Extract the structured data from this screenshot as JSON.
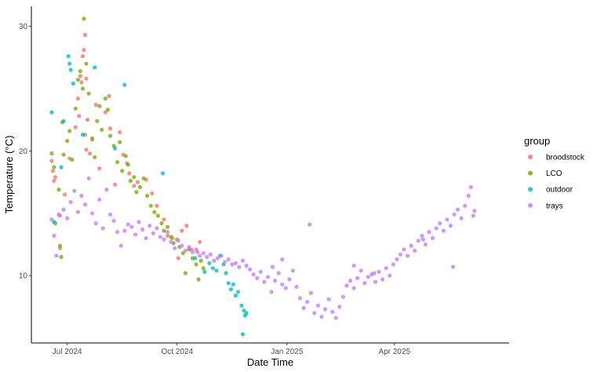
{
  "chart_data": {
    "type": "scatter",
    "xlabel": "Date Time",
    "ylabel": "Temperature (°C)",
    "legend_title": "group",
    "legend_position": "right",
    "grid": false,
    "xlim": [
      "2024-06-01",
      "2025-07-06"
    ],
    "ylim": [
      4.6,
      31.6
    ],
    "x_ticks": [
      {
        "date": "2024-07-01",
        "label": "Jul 2024"
      },
      {
        "date": "2024-10-01",
        "label": "Oct 2024"
      },
      {
        "date": "2025-01-01",
        "label": "Jan 2025"
      },
      {
        "date": "2025-04-01",
        "label": "Apr 2025"
      }
    ],
    "y_ticks": [
      10,
      20,
      30
    ],
    "series": [
      {
        "name": "broodstock",
        "color": "#F8766D",
        "points": [
          [
            "2024-06-18",
            19.2
          ],
          [
            "2024-06-19",
            18.4
          ],
          [
            "2024-06-20",
            17.6
          ],
          [
            "2024-06-21",
            17.9
          ],
          [
            "2024-06-24",
            14.9
          ],
          [
            "2024-06-25",
            12.2
          ],
          [
            "2024-06-29",
            16.5
          ],
          [
            "2024-07-03",
            19.4
          ],
          [
            "2024-07-08",
            21.9
          ],
          [
            "2024-07-10",
            24.2
          ],
          [
            "2024-07-11",
            22.8
          ],
          [
            "2024-07-12",
            26.0
          ],
          [
            "2024-07-13",
            25.5
          ],
          [
            "2024-07-14",
            27.6
          ],
          [
            "2024-07-15",
            28.1
          ],
          [
            "2024-07-16",
            29.3
          ],
          [
            "2024-07-16",
            21.3
          ],
          [
            "2024-07-17",
            20.1
          ],
          [
            "2024-07-17",
            25.8
          ],
          [
            "2024-07-18",
            22.5
          ],
          [
            "2024-07-20",
            19.8
          ],
          [
            "2024-07-22",
            20.9
          ],
          [
            "2024-07-25",
            23.7
          ],
          [
            "2024-07-28",
            18.6
          ],
          [
            "2024-08-02",
            23.1
          ],
          [
            "2024-08-05",
            24.4
          ],
          [
            "2024-08-06",
            21.8
          ],
          [
            "2024-08-10",
            17.3
          ],
          [
            "2024-08-14",
            21.5
          ],
          [
            "2024-08-17",
            19.7
          ],
          [
            "2024-08-20",
            19.0
          ],
          [
            "2024-08-22",
            18.2
          ],
          [
            "2024-08-26",
            17.2
          ],
          [
            "2024-08-29",
            17.5
          ],
          [
            "2024-09-05",
            17.7
          ],
          [
            "2024-09-10",
            16.6
          ],
          [
            "2024-09-14",
            15.6
          ],
          [
            "2024-09-20",
            14.5
          ],
          [
            "2024-09-23",
            13.2
          ],
          [
            "2024-09-27",
            13.0
          ],
          [
            "2024-10-02",
            11.4
          ],
          [
            "2024-10-05",
            13.6
          ],
          [
            "2024-10-09",
            14.0
          ],
          [
            "2024-10-13",
            12.1
          ],
          [
            "2024-10-18",
            11.9
          ],
          [
            "2024-10-20",
            12.7
          ]
        ]
      },
      {
        "name": "LCO",
        "color": "#7CAE00",
        "points": [
          [
            "2024-06-18",
            19.8
          ],
          [
            "2024-06-20",
            18.7
          ],
          [
            "2024-06-21",
            14.2
          ],
          [
            "2024-06-24",
            16.9
          ],
          [
            "2024-06-25",
            12.4
          ],
          [
            "2024-06-26",
            11.5
          ],
          [
            "2024-06-27",
            22.3
          ],
          [
            "2024-06-28",
            19.7
          ],
          [
            "2024-07-01",
            20.8
          ],
          [
            "2024-07-03",
            21.6
          ],
          [
            "2024-07-05",
            19.3
          ],
          [
            "2024-07-08",
            23.4
          ],
          [
            "2024-07-10",
            25.7
          ],
          [
            "2024-07-12",
            26.4
          ],
          [
            "2024-07-14",
            25.0
          ],
          [
            "2024-07-15",
            30.6
          ],
          [
            "2024-07-17",
            27.0
          ],
          [
            "2024-07-19",
            24.6
          ],
          [
            "2024-07-22",
            21.0
          ],
          [
            "2024-07-24",
            19.5
          ],
          [
            "2024-07-26",
            22.4
          ],
          [
            "2024-07-28",
            23.6
          ],
          [
            "2024-07-30",
            21.7
          ],
          [
            "2024-08-02",
            24.2
          ],
          [
            "2024-08-04",
            23.3
          ],
          [
            "2024-08-06",
            21.2
          ],
          [
            "2024-08-09",
            20.4
          ],
          [
            "2024-08-12",
            19.1
          ],
          [
            "2024-08-14",
            20.7
          ],
          [
            "2024-08-16",
            18.4
          ],
          [
            "2024-08-19",
            19.6
          ],
          [
            "2024-08-21",
            18.9
          ],
          [
            "2024-08-23",
            17.6
          ],
          [
            "2024-08-26",
            17.9
          ],
          [
            "2024-08-28",
            16.7
          ],
          [
            "2024-08-31",
            17.1
          ],
          [
            "2024-09-03",
            17.8
          ],
          [
            "2024-09-06",
            16.4
          ],
          [
            "2024-09-09",
            15.6
          ],
          [
            "2024-09-12",
            15.1
          ],
          [
            "2024-09-15",
            14.8
          ],
          [
            "2024-09-18",
            14.2
          ],
          [
            "2024-09-20",
            13.6
          ],
          [
            "2024-09-23",
            13.9
          ],
          [
            "2024-09-26",
            13.1
          ],
          [
            "2024-09-28",
            12.6
          ],
          [
            "2024-10-01",
            12.9
          ],
          [
            "2024-10-03",
            12.3
          ],
          [
            "2024-10-06",
            11.8
          ],
          [
            "2024-10-08",
            10.2
          ],
          [
            "2024-10-11",
            12.1
          ],
          [
            "2024-10-14",
            11.4
          ],
          [
            "2024-10-17",
            10.9
          ],
          [
            "2024-10-19",
            9.7
          ],
          [
            "2024-10-21",
            11.2
          ],
          [
            "2024-10-23",
            10.6
          ]
        ]
      },
      {
        "name": "outdoor",
        "color": "#00BFC4",
        "points": [
          [
            "2024-06-18",
            23.1
          ],
          [
            "2024-06-20",
            14.3
          ],
          [
            "2024-06-26",
            18.7
          ],
          [
            "2024-06-28",
            22.4
          ],
          [
            "2024-07-02",
            27.6
          ],
          [
            "2024-07-03",
            27.0
          ],
          [
            "2024-07-04",
            26.5
          ],
          [
            "2024-07-06",
            25.4
          ],
          [
            "2024-07-14",
            21.3
          ],
          [
            "2024-07-24",
            26.7
          ],
          [
            "2024-08-18",
            25.3
          ],
          [
            "2024-08-10",
            20.2
          ],
          [
            "2024-09-19",
            18.2
          ],
          [
            "2024-10-16",
            11.4
          ],
          [
            "2024-10-24",
            10.3
          ],
          [
            "2024-10-28",
            11.0
          ],
          [
            "2024-10-31",
            10.6
          ],
          [
            "2024-11-03",
            10.4
          ],
          [
            "2024-11-06",
            11.6
          ],
          [
            "2024-11-09",
            10.9
          ],
          [
            "2024-11-11",
            10.2
          ],
          [
            "2024-11-13",
            9.4
          ],
          [
            "2024-11-15",
            8.9
          ],
          [
            "2024-11-17",
            9.3
          ],
          [
            "2024-11-19",
            8.4
          ],
          [
            "2024-11-21",
            8.7
          ],
          [
            "2024-11-24",
            7.6
          ],
          [
            "2024-11-26",
            7.2
          ],
          [
            "2024-11-27",
            6.8
          ],
          [
            "2024-11-28",
            7.0
          ],
          [
            "2024-11-25",
            5.3
          ]
        ]
      },
      {
        "name": "trays",
        "color": "#C77CFF",
        "points": [
          [
            "2024-06-18",
            14.5
          ],
          [
            "2024-06-20",
            13.2
          ],
          [
            "2024-06-22",
            11.6
          ],
          [
            "2024-06-25",
            14.8
          ],
          [
            "2024-06-28",
            15.3
          ],
          [
            "2024-07-01",
            14.6
          ],
          [
            "2024-07-04",
            15.9
          ],
          [
            "2024-07-07",
            16.8
          ],
          [
            "2024-07-10",
            15.1
          ],
          [
            "2024-07-13",
            16.4
          ],
          [
            "2024-07-16",
            15.7
          ],
          [
            "2024-07-19",
            17.8
          ],
          [
            "2024-07-22",
            15.0
          ],
          [
            "2024-07-25",
            14.2
          ],
          [
            "2024-07-28",
            16.1
          ],
          [
            "2024-07-31",
            13.8
          ],
          [
            "2024-08-03",
            16.9
          ],
          [
            "2024-08-06",
            14.9
          ],
          [
            "2024-08-09",
            14.4
          ],
          [
            "2024-08-12",
            13.5
          ],
          [
            "2024-08-15",
            12.4
          ],
          [
            "2024-08-18",
            13.6
          ],
          [
            "2024-08-21",
            14.1
          ],
          [
            "2024-08-24",
            13.9
          ],
          [
            "2024-08-27",
            13.3
          ],
          [
            "2024-08-30",
            14.3
          ],
          [
            "2024-09-02",
            13.7
          ],
          [
            "2024-09-05",
            13.0
          ],
          [
            "2024-09-08",
            14.0
          ],
          [
            "2024-09-11",
            13.4
          ],
          [
            "2024-09-14",
            13.8
          ],
          [
            "2024-09-17",
            13.1
          ],
          [
            "2024-09-20",
            12.9
          ],
          [
            "2024-09-23",
            13.5
          ],
          [
            "2024-09-26",
            12.7
          ],
          [
            "2024-09-29",
            12.2
          ],
          [
            "2024-10-02",
            12.8
          ],
          [
            "2024-10-05",
            12.4
          ],
          [
            "2024-10-08",
            12.0
          ],
          [
            "2024-10-11",
            12.3
          ],
          [
            "2024-10-14",
            11.9
          ],
          [
            "2024-10-17",
            12.1
          ],
          [
            "2024-10-20",
            11.6
          ],
          [
            "2024-10-23",
            11.8
          ],
          [
            "2024-10-26",
            11.5
          ],
          [
            "2024-10-29",
            11.7
          ],
          [
            "2024-11-01",
            11.2
          ],
          [
            "2024-11-04",
            11.4
          ],
          [
            "2024-11-07",
            11.6
          ],
          [
            "2024-11-10",
            11.1
          ],
          [
            "2024-11-13",
            11.3
          ],
          [
            "2024-11-16",
            10.9
          ],
          [
            "2024-11-19",
            11.0
          ],
          [
            "2024-11-22",
            10.7
          ],
          [
            "2024-11-25",
            11.2
          ],
          [
            "2024-11-28",
            10.8
          ],
          [
            "2024-12-01",
            10.5
          ],
          [
            "2024-12-04",
            10.1
          ],
          [
            "2024-12-07",
            9.8
          ],
          [
            "2024-12-10",
            10.3
          ],
          [
            "2024-12-13",
            9.5
          ],
          [
            "2024-12-16",
            9.9
          ],
          [
            "2024-12-19",
            8.7
          ],
          [
            "2024-12-22",
            9.6
          ],
          [
            "2024-12-25",
            10.2
          ],
          [
            "2024-12-28",
            9.3
          ],
          [
            "2024-12-31",
            9.0
          ],
          [
            "2025-01-03",
            9.7
          ],
          [
            "2025-01-06",
            10.4
          ],
          [
            "2025-01-09",
            9.1
          ],
          [
            "2025-01-12",
            8.2
          ],
          [
            "2025-01-15",
            7.4
          ],
          [
            "2025-01-18",
            7.9
          ],
          [
            "2025-01-21",
            8.6
          ],
          [
            "2025-01-24",
            7.0
          ],
          [
            "2025-01-27",
            7.6
          ],
          [
            "2025-01-30",
            6.7
          ],
          [
            "2025-02-02",
            7.3
          ],
          [
            "2025-02-05",
            8.1
          ],
          [
            "2025-02-08",
            7.1
          ],
          [
            "2025-02-11",
            6.6
          ],
          [
            "2025-02-14",
            7.5
          ],
          [
            "2025-02-17",
            8.3
          ],
          [
            "2025-02-20",
            9.2
          ],
          [
            "2025-02-23",
            9.6
          ],
          [
            "2025-02-26",
            9.0
          ],
          [
            "2025-03-01",
            9.8
          ],
          [
            "2025-03-04",
            10.4
          ],
          [
            "2025-03-07",
            9.4
          ],
          [
            "2025-03-10",
            9.9
          ],
          [
            "2025-03-13",
            10.1
          ],
          [
            "2025-03-16",
            9.5
          ],
          [
            "2025-03-19",
            10.3
          ],
          [
            "2025-03-22",
            9.7
          ],
          [
            "2025-03-25",
            10.6
          ],
          [
            "2025-03-28",
            10.0
          ],
          [
            "2025-03-31",
            10.9
          ],
          [
            "2025-04-03",
            11.3
          ],
          [
            "2025-04-06",
            11.7
          ],
          [
            "2025-04-09",
            12.1
          ],
          [
            "2025-04-12",
            11.6
          ],
          [
            "2025-04-15",
            12.4
          ],
          [
            "2025-04-18",
            12.0
          ],
          [
            "2025-04-21",
            12.8
          ],
          [
            "2025-04-24",
            13.2
          ],
          [
            "2025-04-27",
            12.5
          ],
          [
            "2025-04-30",
            13.5
          ],
          [
            "2025-05-03",
            13.0
          ],
          [
            "2025-05-06",
            13.8
          ],
          [
            "2025-05-09",
            14.2
          ],
          [
            "2025-05-12",
            13.6
          ],
          [
            "2025-05-15",
            14.5
          ],
          [
            "2025-05-18",
            14.0
          ],
          [
            "2025-05-21",
            14.9
          ],
          [
            "2025-05-24",
            15.3
          ],
          [
            "2025-05-27",
            14.6
          ],
          [
            "2025-05-30",
            15.6
          ],
          [
            "2025-06-02",
            16.4
          ],
          [
            "2025-06-04",
            17.1
          ],
          [
            "2025-06-06",
            14.8
          ],
          [
            "2025-06-07",
            15.2
          ],
          [
            "2025-04-25",
            12.9
          ],
          [
            "2025-05-20",
            10.7
          ],
          [
            "2025-03-15",
            10.2
          ],
          [
            "2025-01-20",
            14.1
          ],
          [
            "2024-12-28",
            11.3
          ],
          [
            "2024-12-20",
            10.7
          ],
          [
            "2025-02-26",
            10.8
          ]
        ]
      }
    ]
  }
}
